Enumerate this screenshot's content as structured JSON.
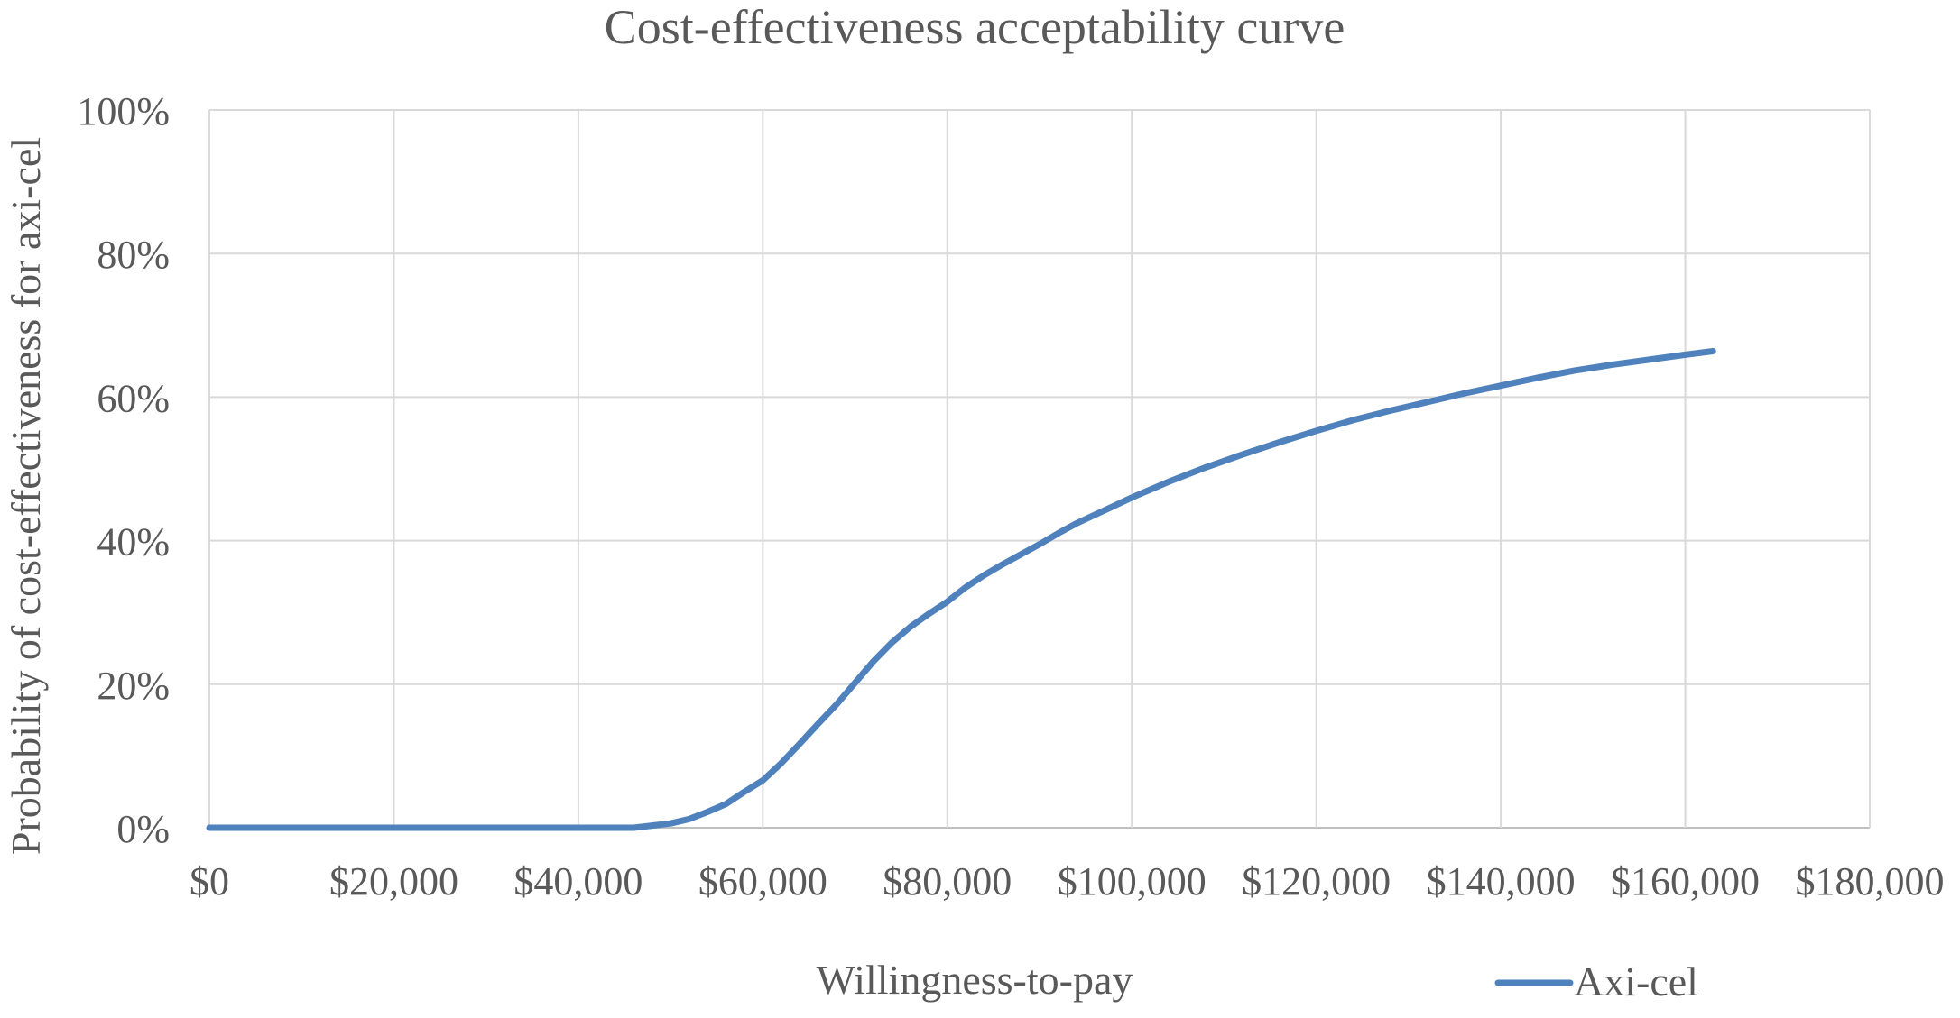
{
  "chart_data": {
    "type": "line",
    "title": "Cost-effectiveness acceptability curve",
    "xlabel": "Willingness-to-pay",
    "ylabel": "Probability of cost-effectiveness for axi-cel",
    "xlim": [
      0,
      180000
    ],
    "ylim": [
      0,
      1
    ],
    "x_ticks": [
      0,
      20000,
      40000,
      60000,
      80000,
      100000,
      120000,
      140000,
      160000,
      180000
    ],
    "x_tick_labels": [
      "$0",
      "$20,000",
      "$40,000",
      "$60,000",
      "$80,000",
      "$100,000",
      "$120,000",
      "$140,000",
      "$160,000",
      "$180,000"
    ],
    "y_ticks": [
      0,
      0.2,
      0.4,
      0.6,
      0.8,
      1.0
    ],
    "y_tick_labels": [
      "0%",
      "20%",
      "40%",
      "60%",
      "80%",
      "100%"
    ],
    "grid": true,
    "legend_position": "bottom-right",
    "series": [
      {
        "name": "Axi-cel",
        "color": "#4f81bd",
        "x": [
          0,
          10000,
          20000,
          30000,
          40000,
          46000,
          48000,
          50000,
          52000,
          54000,
          56000,
          58000,
          60000,
          62000,
          64000,
          66000,
          68000,
          70000,
          72000,
          74000,
          76000,
          78000,
          80000,
          82000,
          84000,
          86000,
          88000,
          90000,
          92000,
          94000,
          96000,
          98000,
          100000,
          104000,
          108000,
          112000,
          116000,
          120000,
          124000,
          128000,
          132000,
          136000,
          140000,
          144000,
          148000,
          152000,
          156000,
          160000,
          163000
        ],
        "y": [
          0,
          0,
          0,
          0,
          0,
          0,
          0.003,
          0.006,
          0.012,
          0.022,
          0.033,
          0.05,
          0.066,
          0.09,
          0.117,
          0.145,
          0.172,
          0.202,
          0.232,
          0.258,
          0.28,
          0.298,
          0.315,
          0.335,
          0.352,
          0.367,
          0.381,
          0.395,
          0.41,
          0.424,
          0.436,
          0.448,
          0.46,
          0.482,
          0.502,
          0.52,
          0.537,
          0.553,
          0.568,
          0.581,
          0.593,
          0.605,
          0.616,
          0.627,
          0.637,
          0.645,
          0.652,
          0.659,
          0.664
        ]
      }
    ]
  }
}
